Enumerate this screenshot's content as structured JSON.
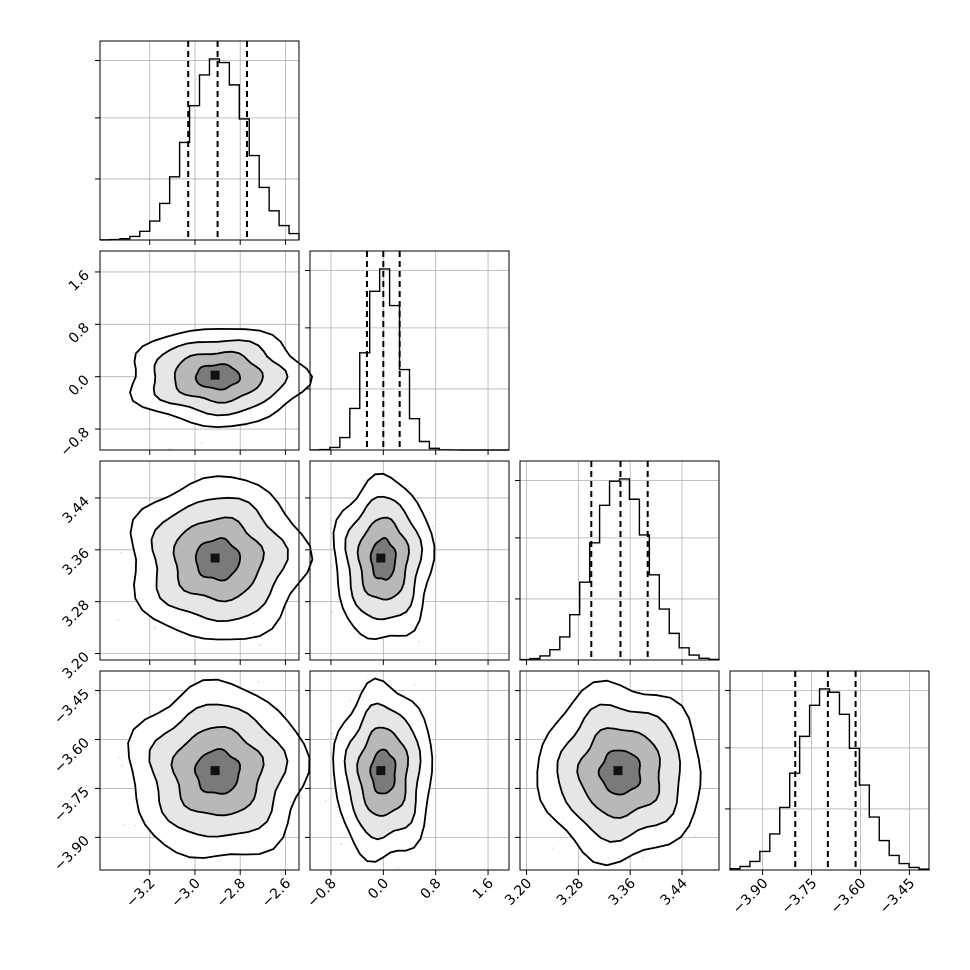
{
  "chart_data": {
    "type": "corner",
    "title": "",
    "parameters": [
      {
        "label": "",
        "median": -2.9,
        "q16": -3.03,
        "q84": -2.77,
        "sigma": 0.13,
        "range": [
          -3.42,
          -2.54
        ],
        "ticks": [
          -3.2,
          -3.0,
          -2.8,
          -2.6
        ],
        "tick_labels": [
          "−3.2",
          "−3.0",
          "−2.8",
          "−2.6"
        ]
      },
      {
        "label": "",
        "median": 0.0,
        "q16": -0.25,
        "q84": 0.25,
        "sigma": 0.25,
        "range": [
          -1.12,
          1.92
        ],
        "ticks": [
          -0.8,
          0.0,
          0.8,
          1.6
        ],
        "tick_labels": [
          "−0.8",
          "0.0",
          "0.8",
          "1.6"
        ]
      },
      {
        "label": "",
        "median": 3.345,
        "q16": 3.3,
        "q84": 3.387,
        "sigma": 0.042,
        "range": [
          3.19,
          3.497
        ],
        "ticks": [
          3.2,
          3.28,
          3.36,
          3.44
        ],
        "tick_labels": [
          "3.20",
          "3.28",
          "3.36",
          "3.44"
        ]
      },
      {
        "label": "",
        "median": -3.7,
        "q16": -3.8,
        "q84": -3.615,
        "sigma": 0.09,
        "range": [
          -4.0,
          -3.39
        ],
        "ticks": [
          -3.9,
          -3.75,
          -3.6,
          -3.45
        ],
        "tick_labels": [
          "−3.90",
          "−3.75",
          "−3.60",
          "−3.45"
        ]
      }
    ],
    "histogram_bins": 20,
    "quantile_lines": [
      0.16,
      0.5,
      0.84
    ],
    "contour_levels_sigma": [
      0.5,
      1.0,
      1.5,
      2.0
    ],
    "grid": true,
    "colors": {
      "line": "#000000",
      "points": "#9a9a9a",
      "grid": "#b0b0b0"
    }
  }
}
